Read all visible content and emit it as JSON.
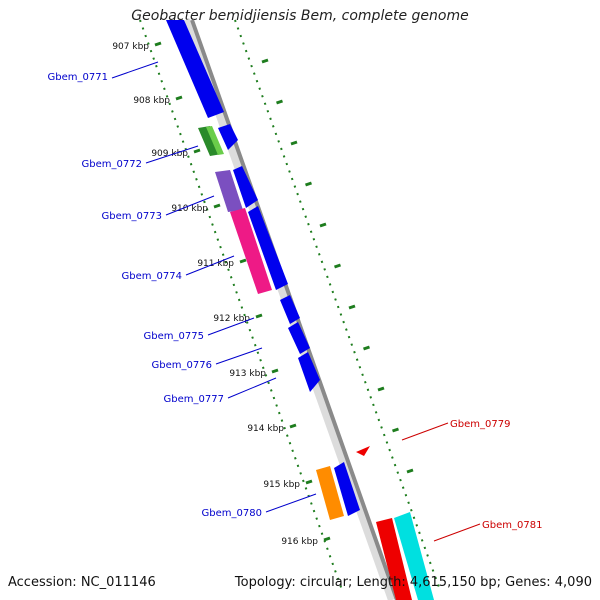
{
  "title": "Geobacter bemidjiensis Bem, complete genome",
  "footer": {
    "accession": "Accession: NC_011146",
    "summary": "Topology: circular; Length: 4,615,150 bp; Genes: 4,090"
  },
  "kbp_ticks": [
    "907 kbp",
    "908 kbp",
    "909 kbp",
    "910 kbp",
    "911 kbp",
    "912 kbp",
    "913 kbp",
    "914 kbp",
    "915 kbp",
    "916 kbp"
  ],
  "genes_left": [
    "Gbem_0771",
    "Gbem_0772",
    "Gbem_0773",
    "Gbem_0774",
    "Gbem_0775",
    "Gbem_0776",
    "Gbem_0777",
    "Gbem_0780"
  ],
  "genes_right": [
    "Gbem_0779",
    "Gbem_0781"
  ],
  "colors": {
    "left_label": "#0000cc",
    "right_label": "#cc0000",
    "tick_green": "#1e7d1e",
    "backbone": "#8a8a8a",
    "blue": "#0000ee",
    "green": "#2a8a2a",
    "purple": "#7b4fc0",
    "magenta": "#ee1a86",
    "orange": "#ff8c00",
    "red": "#ee0000",
    "cyan": "#00e0e0"
  }
}
